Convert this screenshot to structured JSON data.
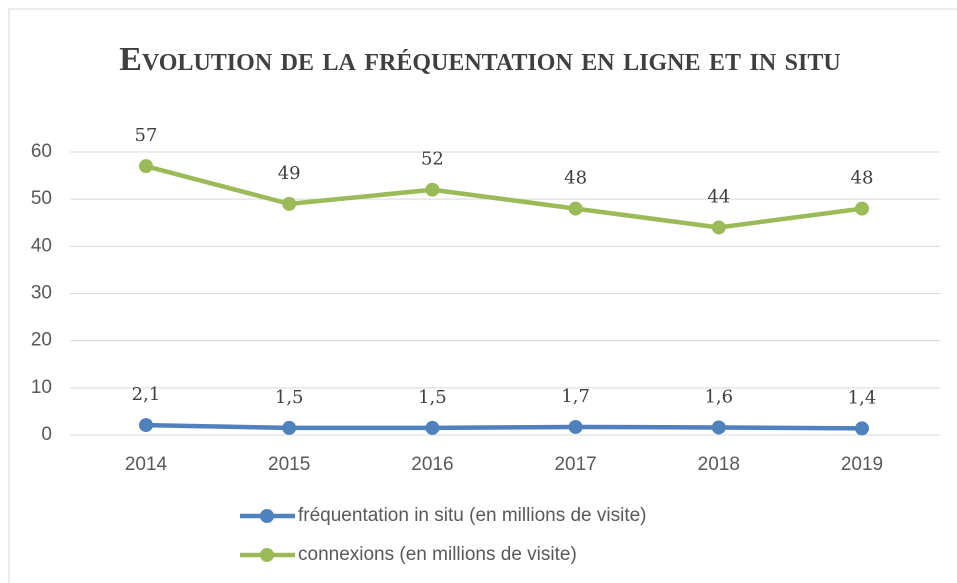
{
  "chart_data": {
    "type": "line",
    "title": "Evolution de la fréquentation en ligne et in situ",
    "categories": [
      "2014",
      "2015",
      "2016",
      "2017",
      "2018",
      "2019"
    ],
    "series": [
      {
        "name": "fréquentation in situ (en millions de visite)",
        "color": "#4f81bd",
        "values": [
          2.1,
          1.5,
          1.5,
          1.7,
          1.6,
          1.4
        ],
        "value_labels": [
          "2,1",
          "1,5",
          "1,5",
          "1,7",
          "1,6",
          "1,4"
        ]
      },
      {
        "name": "connexions (en millions de visite)",
        "color": "#9bbb59",
        "values": [
          57,
          49,
          52,
          48,
          44,
          48
        ]
      }
    ],
    "ylim": [
      0,
      60
    ],
    "yticks": [
      0,
      10,
      20,
      30,
      40,
      50,
      60
    ],
    "grid": true,
    "legend": "bottom"
  }
}
